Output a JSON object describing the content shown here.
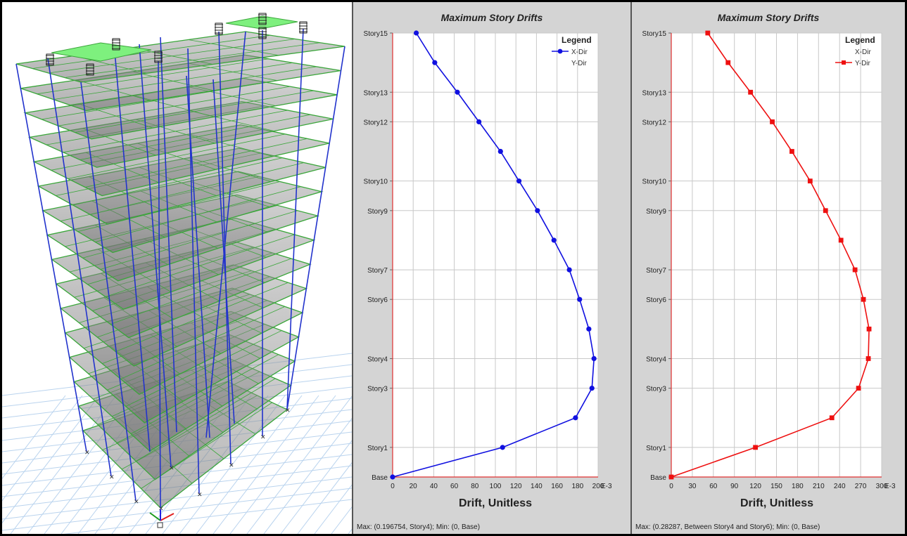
{
  "charts": [
    {
      "panel": "x",
      "title": "Maximum Story Drifts",
      "xlabel": "Drift, Unitless",
      "x_unit": "E-3",
      "legend_title": "Legend",
      "legend_items": [
        "X-Dir",
        "Y-Dir"
      ],
      "active_series": "X-Dir",
      "status": "Max: (0.196754, Story4);  Min: (0, Base)",
      "color": "#1010e0",
      "marker": "circle"
    },
    {
      "panel": "y",
      "title": "Maximum Story Drifts",
      "xlabel": "Drift, Unitless",
      "x_unit": "E-3",
      "legend_title": "Legend",
      "legend_items": [
        "X-Dir",
        "Y-Dir"
      ],
      "active_series": "Y-Dir",
      "status": "Max: (0.28287, Between Story4 and Story6);  Min: (0, Base)",
      "color": "#ee1010",
      "marker": "square"
    }
  ],
  "chart_data": [
    {
      "type": "line",
      "title": "Maximum Story Drifts",
      "xlabel": "Drift, Unitless",
      "ylabel": "",
      "x_unit": "E-3",
      "xlim": [
        0,
        200
      ],
      "xticks": [
        0,
        20,
        40,
        60,
        80,
        100,
        120,
        140,
        160,
        180,
        200
      ],
      "ylim": [
        0,
        15
      ],
      "yticks": [
        {
          "level": 0,
          "label": "Base"
        },
        {
          "level": 1,
          "label": "Story1"
        },
        {
          "level": 3,
          "label": "Story3"
        },
        {
          "level": 4,
          "label": "Story4"
        },
        {
          "level": 6,
          "label": "Story6"
        },
        {
          "level": 7,
          "label": "Story7"
        },
        {
          "level": 9,
          "label": "Story9"
        },
        {
          "level": 10,
          "label": "Story10"
        },
        {
          "level": 12,
          "label": "Story12"
        },
        {
          "level": 13,
          "label": "Story13"
        },
        {
          "level": 15,
          "label": "Story15"
        }
      ],
      "legend_position": "top-right",
      "grid": true,
      "series": [
        {
          "name": "X-Dir",
          "y": [
            0,
            1,
            2,
            3,
            4,
            5,
            6,
            7,
            8,
            9,
            10,
            11,
            12,
            13,
            14,
            15
          ],
          "x": [
            0,
            107,
            178,
            194,
            196,
            191,
            182,
            172,
            157,
            141,
            123,
            105,
            84,
            63,
            41,
            23
          ]
        },
        {
          "name": "Y-Dir",
          "y": [],
          "x": []
        }
      ]
    },
    {
      "type": "line",
      "title": "Maximum Story Drifts",
      "xlabel": "Drift, Unitless",
      "ylabel": "",
      "x_unit": "E-3",
      "xlim": [
        0,
        300
      ],
      "xticks": [
        0,
        30,
        60,
        90,
        120,
        150,
        180,
        210,
        240,
        270,
        300
      ],
      "ylim": [
        0,
        15
      ],
      "yticks": [
        {
          "level": 0,
          "label": "Base"
        },
        {
          "level": 1,
          "label": "Story1"
        },
        {
          "level": 3,
          "label": "Story3"
        },
        {
          "level": 4,
          "label": "Story4"
        },
        {
          "level": 6,
          "label": "Story6"
        },
        {
          "level": 7,
          "label": "Story7"
        },
        {
          "level": 9,
          "label": "Story9"
        },
        {
          "level": 10,
          "label": "Story10"
        },
        {
          "level": 12,
          "label": "Story12"
        },
        {
          "level": 13,
          "label": "Story13"
        },
        {
          "level": 15,
          "label": "Story15"
        }
      ],
      "legend_position": "top-right",
      "grid": true,
      "series": [
        {
          "name": "X-Dir",
          "y": [],
          "x": []
        },
        {
          "name": "Y-Dir",
          "y": [
            0,
            1,
            2,
            3,
            4,
            5,
            6,
            7,
            8,
            9,
            10,
            11,
            12,
            13,
            14,
            15
          ],
          "x": [
            0,
            120,
            229,
            267,
            281,
            282,
            274,
            262,
            242,
            220,
            198,
            172,
            144,
            113,
            81,
            52
          ]
        }
      ]
    }
  ]
}
